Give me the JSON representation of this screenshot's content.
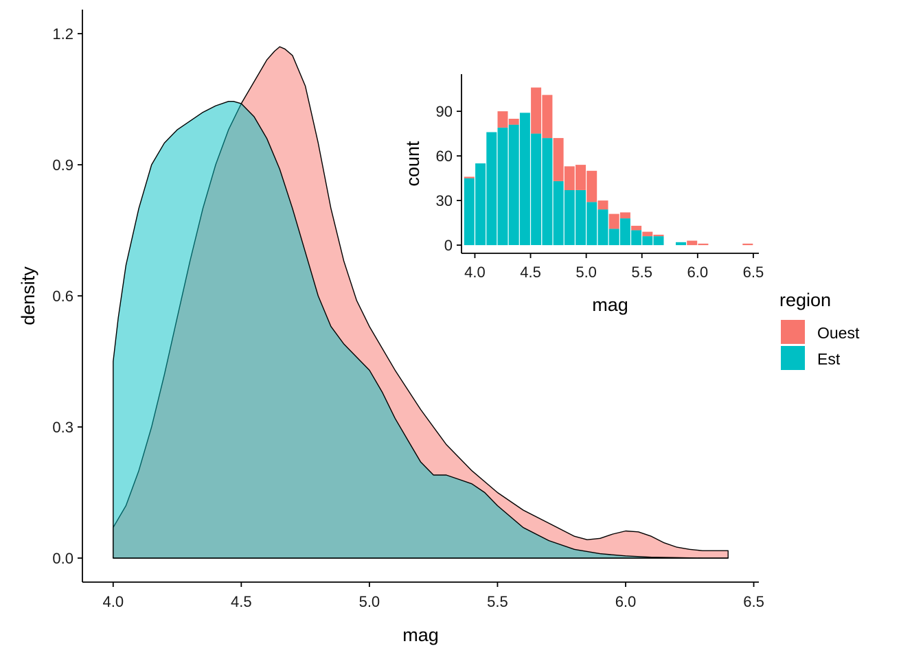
{
  "chart_data": [
    {
      "type": "area",
      "xlabel": "mag",
      "ylabel": "density",
      "xlim": [
        3.88,
        6.52
      ],
      "ylim": [
        -0.055,
        1.255
      ],
      "xticks": [
        4.0,
        4.5,
        5.0,
        5.5,
        6.0,
        6.5
      ],
      "xtick_labels": [
        "4.0",
        "4.5",
        "5.0",
        "5.5",
        "6.0",
        "6.5"
      ],
      "yticks": [
        0.0,
        0.3,
        0.6,
        0.9,
        1.2
      ],
      "ytick_labels": [
        "0.0",
        "0.3",
        "0.6",
        "0.9",
        "1.2"
      ],
      "grid": false,
      "series": [
        {
          "name": "Ouest",
          "color": "#F8766D",
          "x": [
            4.0,
            4.05,
            4.1,
            4.15,
            4.2,
            4.25,
            4.3,
            4.35,
            4.4,
            4.45,
            4.5,
            4.55,
            4.6,
            4.63,
            4.65,
            4.67,
            4.7,
            4.75,
            4.8,
            4.85,
            4.9,
            4.95,
            5.0,
            5.1,
            5.2,
            5.3,
            5.4,
            5.5,
            5.6,
            5.7,
            5.8,
            5.85,
            5.9,
            5.95,
            6.0,
            6.05,
            6.1,
            6.15,
            6.2,
            6.25,
            6.3,
            6.4
          ],
          "y": [
            0.07,
            0.12,
            0.2,
            0.3,
            0.42,
            0.55,
            0.68,
            0.8,
            0.9,
            0.98,
            1.04,
            1.09,
            1.14,
            1.16,
            1.17,
            1.165,
            1.15,
            1.08,
            0.95,
            0.8,
            0.68,
            0.59,
            0.53,
            0.43,
            0.34,
            0.26,
            0.2,
            0.15,
            0.11,
            0.08,
            0.05,
            0.042,
            0.045,
            0.055,
            0.062,
            0.06,
            0.05,
            0.035,
            0.025,
            0.02,
            0.017,
            0.017
          ]
        },
        {
          "name": "Est",
          "color": "#00BFC4",
          "x": [
            4.0,
            4.02,
            4.05,
            4.1,
            4.15,
            4.2,
            4.25,
            4.3,
            4.35,
            4.4,
            4.45,
            4.47,
            4.5,
            4.55,
            4.6,
            4.65,
            4.7,
            4.75,
            4.8,
            4.85,
            4.9,
            4.95,
            5.0,
            5.05,
            5.1,
            5.15,
            5.2,
            5.25,
            5.3,
            5.35,
            5.4,
            5.45,
            5.5,
            5.6,
            5.7,
            5.8,
            5.9,
            6.0,
            6.1,
            6.2,
            6.3,
            6.4
          ],
          "y": [
            0.45,
            0.55,
            0.67,
            0.8,
            0.9,
            0.95,
            0.98,
            1.0,
            1.02,
            1.035,
            1.045,
            1.045,
            1.04,
            1.01,
            0.96,
            0.89,
            0.8,
            0.7,
            0.6,
            0.53,
            0.49,
            0.46,
            0.43,
            0.38,
            0.32,
            0.27,
            0.22,
            0.19,
            0.19,
            0.18,
            0.17,
            0.15,
            0.12,
            0.07,
            0.04,
            0.02,
            0.01,
            0.005,
            0.002,
            0.001,
            0.0,
            0.0
          ]
        }
      ]
    },
    {
      "type": "bar",
      "stacked": true,
      "xlabel": "mag",
      "ylabel": "count",
      "xlim": [
        3.88,
        6.55
      ],
      "ylim": [
        -5.5,
        115
      ],
      "xticks": [
        4.0,
        4.5,
        5.0,
        5.5,
        6.0,
        6.5
      ],
      "xtick_labels": [
        "4.0",
        "4.5",
        "5.0",
        "5.5",
        "6.0",
        "6.5"
      ],
      "yticks": [
        0,
        30,
        60,
        90
      ],
      "ytick_labels": [
        "0",
        "30",
        "60",
        "90"
      ],
      "bin_width": 0.1,
      "x": [
        3.95,
        4.05,
        4.15,
        4.25,
        4.35,
        4.45,
        4.55,
        4.65,
        4.75,
        4.85,
        4.95,
        5.05,
        5.15,
        5.25,
        5.35,
        5.45,
        5.55,
        5.65,
        5.75,
        5.85,
        5.95,
        6.05,
        6.15,
        6.25,
        6.35,
        6.45
      ],
      "series": [
        {
          "name": "Est",
          "color": "#00BFC4",
          "values": [
            45,
            55,
            76,
            79,
            81,
            89,
            75,
            72,
            43,
            37,
            37,
            29,
            24,
            11,
            18,
            10,
            6,
            6,
            0,
            2,
            0,
            0,
            0,
            0,
            0,
            0
          ]
        },
        {
          "name": "Ouest",
          "color": "#F8766D",
          "values": [
            1,
            0,
            0,
            11,
            4,
            0,
            31,
            29,
            29,
            16,
            17,
            21,
            6,
            10,
            4,
            3,
            3,
            1,
            0,
            0,
            3,
            1,
            0,
            0,
            0,
            1
          ]
        }
      ]
    }
  ],
  "legend": {
    "title": "region",
    "items": [
      {
        "label": "Ouest",
        "color": "#F8766D"
      },
      {
        "label": "Est",
        "color": "#00BFC4"
      }
    ]
  }
}
